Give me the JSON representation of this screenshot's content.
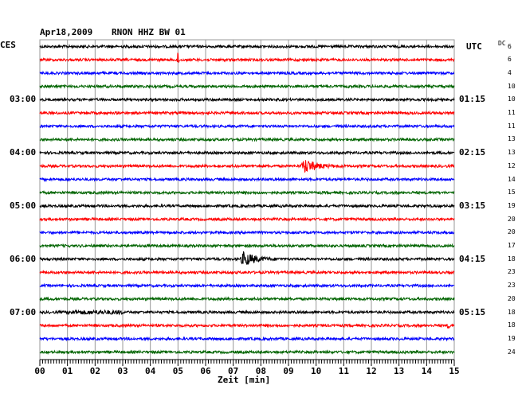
{
  "header": {
    "date": "Apr18,2009",
    "station": "RNON HHZ BW 01",
    "left_timezone": "CES",
    "right_timezone": "UTC",
    "dc_label": "DC"
  },
  "chart_data": {
    "type": "line",
    "title": "Apr18,2009   RNON HHZ BW 01",
    "xlabel": "Zeit [min]",
    "xlim": [
      0,
      15
    ],
    "x_ticks": [
      "00",
      "01",
      "02",
      "03",
      "04",
      "05",
      "06",
      "07",
      "08",
      "09",
      "10",
      "11",
      "12",
      "13",
      "14",
      "15"
    ],
    "trace_count": 24,
    "trace_colors": [
      "#000000",
      "#ff0000",
      "#0000ff",
      "#006400"
    ],
    "left_hour_labels": [
      {
        "trace": 4,
        "label": "03:00"
      },
      {
        "trace": 8,
        "label": "04:00"
      },
      {
        "trace": 12,
        "label": "05:00"
      },
      {
        "trace": 16,
        "label": "06:00"
      },
      {
        "trace": 20,
        "label": "07:00"
      }
    ],
    "right_hour_labels": [
      {
        "trace": 0,
        "label": "UTC"
      },
      {
        "trace": 4,
        "label": "01:15"
      },
      {
        "trace": 8,
        "label": "02:15"
      },
      {
        "trace": 12,
        "label": "03:15"
      },
      {
        "trace": 16,
        "label": "04:15"
      },
      {
        "trace": 20,
        "label": "05:15"
      }
    ],
    "dc_offsets": [
      6,
      6,
      4,
      10,
      10,
      11,
      11,
      13,
      13,
      12,
      14,
      15,
      19,
      20,
      20,
      17,
      18,
      23,
      23,
      20,
      18,
      18,
      19,
      24
    ],
    "events": [
      {
        "trace": 1,
        "minute": 5.0,
        "type": "spike"
      },
      {
        "trace": 9,
        "minute": 9.5,
        "type": "quake"
      },
      {
        "trace": 16,
        "minute": 7.3,
        "type": "quake"
      },
      {
        "trace": 20,
        "minute": 2.0,
        "type": "noise-burst"
      },
      {
        "trace": 21,
        "minute": 14.8,
        "type": "small-spike"
      }
    ]
  }
}
